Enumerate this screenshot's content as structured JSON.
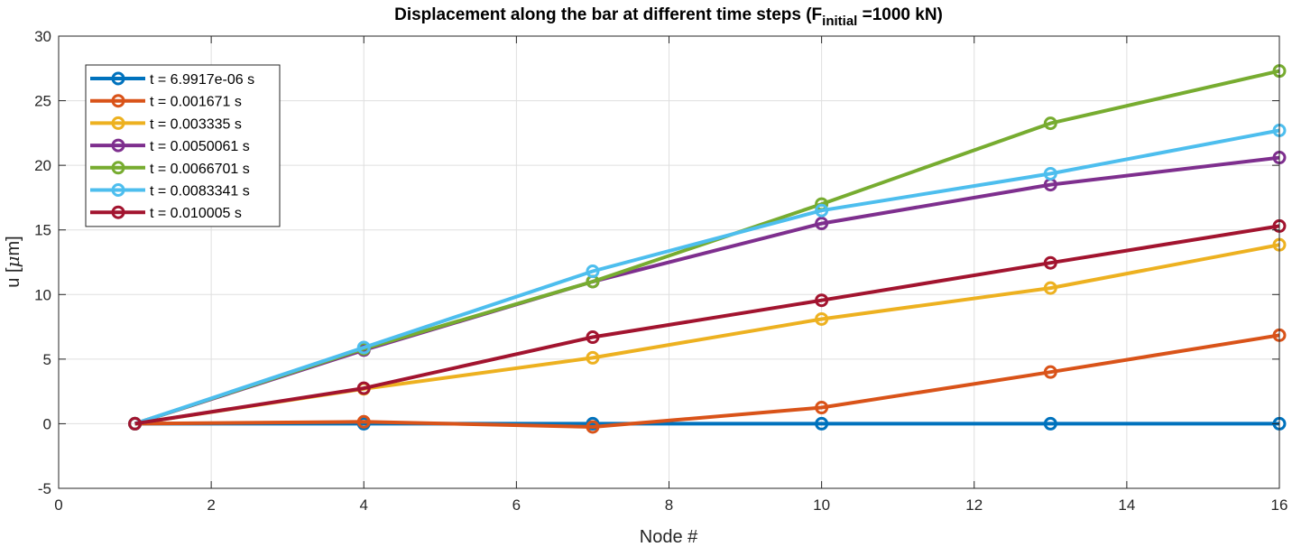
{
  "chart_data": {
    "type": "line",
    "title": "Displacement along the bar at different time steps (F",
    "title_subscript": "initial",
    "title_suffix": " =1000 kN)",
    "xlabel": "Node #",
    "ylabel_prefix": "u [",
    "ylabel_mu": "μ",
    "ylabel_suffix": "m]",
    "xlim": [
      0,
      16
    ],
    "ylim": [
      -5,
      30
    ],
    "xticks": [
      0,
      2,
      4,
      6,
      8,
      10,
      12,
      14,
      16
    ],
    "yticks": [
      -5,
      0,
      5,
      10,
      15,
      20,
      25,
      30
    ],
    "grid": true,
    "legend_position": "top-left",
    "x": [
      1,
      4,
      7,
      10,
      13,
      16
    ],
    "series": [
      {
        "name": "t = 6.9917e-06 s",
        "color": "#0072BD",
        "values": [
          0,
          0,
          0,
          0,
          0,
          0
        ]
      },
      {
        "name": "t = 0.001671 s",
        "color": "#D95319",
        "values": [
          0,
          0.15,
          -0.25,
          1.25,
          4.0,
          6.85
        ]
      },
      {
        "name": "t = 0.003335 s",
        "color": "#EDB120",
        "values": [
          0,
          2.7,
          5.1,
          8.1,
          10.5,
          13.85
        ]
      },
      {
        "name": "t = 0.0050061 s",
        "color": "#7E2F8E",
        "values": [
          0,
          5.7,
          11.0,
          15.5,
          18.5,
          20.6
        ]
      },
      {
        "name": "t = 0.0066701 s",
        "color": "#77AC30",
        "values": [
          0,
          5.8,
          11.0,
          17.0,
          23.25,
          27.3
        ]
      },
      {
        "name": "t = 0.0083341 s",
        "color": "#4DBEEE",
        "values": [
          0,
          5.9,
          11.8,
          16.5,
          19.35,
          22.7
        ]
      },
      {
        "name": "t = 0.010005 s",
        "color": "#A2142F",
        "values": [
          0,
          2.75,
          6.7,
          9.55,
          12.45,
          15.3
        ]
      }
    ]
  }
}
